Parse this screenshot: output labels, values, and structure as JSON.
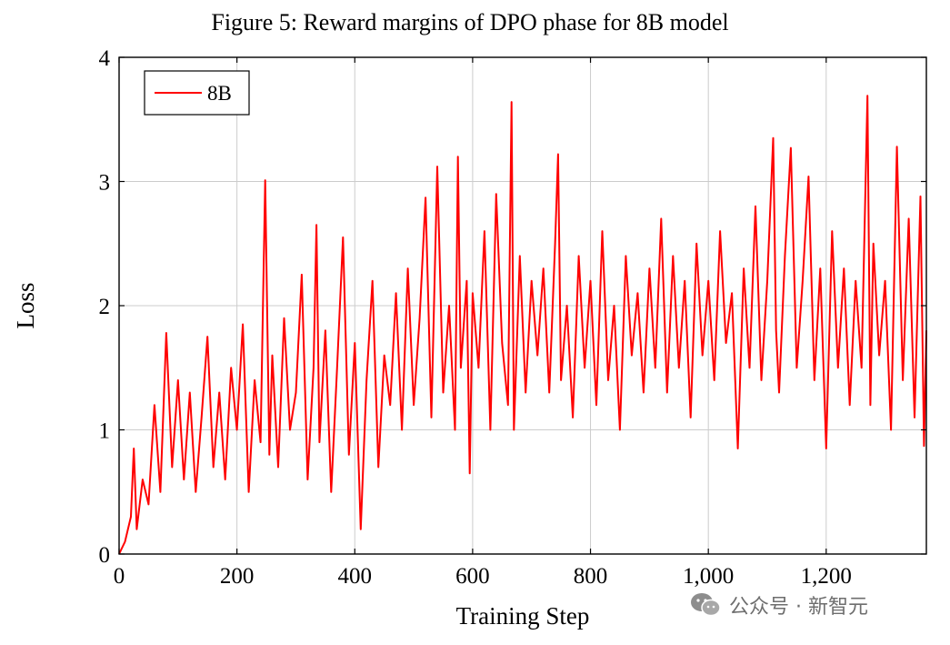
{
  "chart_data": {
    "type": "line",
    "title": "Figure 5: Reward margins of DPO phase for 8B model",
    "xlabel": "Training Step",
    "ylabel": "Loss",
    "xlim": [
      0,
      1370
    ],
    "ylim": [
      0,
      4
    ],
    "xticks": [
      0,
      200,
      400,
      600,
      800,
      1000,
      1200
    ],
    "xtick_labels": [
      "0",
      "200",
      "400",
      "600",
      "800",
      "1,000",
      "1,200"
    ],
    "yticks": [
      0,
      1,
      2,
      3,
      4
    ],
    "ytick_labels": [
      "0",
      "1",
      "2",
      "3",
      "4"
    ],
    "grid": true,
    "legend_position": "top-left",
    "series": [
      {
        "name": "8B",
        "color": "#ff0000",
        "x": [
          0,
          10,
          20,
          25,
          30,
          40,
          50,
          60,
          70,
          80,
          90,
          100,
          110,
          120,
          130,
          140,
          150,
          160,
          170,
          180,
          190,
          200,
          210,
          220,
          230,
          240,
          248,
          255,
          260,
          270,
          280,
          290,
          300,
          310,
          320,
          330,
          335,
          340,
          350,
          360,
          370,
          380,
          390,
          400,
          410,
          420,
          430,
          440,
          450,
          460,
          470,
          480,
          490,
          500,
          510,
          520,
          530,
          540,
          550,
          560,
          570,
          575,
          580,
          590,
          595,
          600,
          610,
          620,
          630,
          640,
          650,
          660,
          666,
          670,
          680,
          690,
          700,
          710,
          720,
          730,
          740,
          745,
          750,
          760,
          770,
          780,
          790,
          800,
          810,
          820,
          830,
          840,
          850,
          860,
          870,
          880,
          890,
          900,
          910,
          920,
          930,
          940,
          950,
          960,
          970,
          980,
          990,
          1000,
          1010,
          1020,
          1030,
          1040,
          1050,
          1060,
          1070,
          1080,
          1090,
          1100,
          1110,
          1115,
          1120,
          1130,
          1140,
          1150,
          1160,
          1170,
          1180,
          1190,
          1200,
          1210,
          1220,
          1230,
          1240,
          1250,
          1260,
          1270,
          1275,
          1280,
          1290,
          1300,
          1310,
          1320,
          1330,
          1340,
          1350,
          1360,
          1366,
          1370
        ],
        "y": [
          0.0,
          0.1,
          0.3,
          0.85,
          0.2,
          0.6,
          0.4,
          1.2,
          0.5,
          1.78,
          0.7,
          1.4,
          0.6,
          1.3,
          0.5,
          1.1,
          1.75,
          0.7,
          1.3,
          0.6,
          1.5,
          1.0,
          1.85,
          0.5,
          1.4,
          0.9,
          3.01,
          0.8,
          1.6,
          0.7,
          1.9,
          1.0,
          1.3,
          2.25,
          0.6,
          1.5,
          2.65,
          0.9,
          1.8,
          0.5,
          1.5,
          2.55,
          0.8,
          1.7,
          0.2,
          1.4,
          2.2,
          0.7,
          1.6,
          1.2,
          2.1,
          1.0,
          2.3,
          1.2,
          1.9,
          2.87,
          1.1,
          3.12,
          1.3,
          2.0,
          1.0,
          3.2,
          1.5,
          2.2,
          0.65,
          2.1,
          1.5,
          2.6,
          1.0,
          2.9,
          1.7,
          1.2,
          3.64,
          1.0,
          2.4,
          1.3,
          2.2,
          1.6,
          2.3,
          1.3,
          2.5,
          3.22,
          1.4,
          2.0,
          1.1,
          2.4,
          1.5,
          2.2,
          1.2,
          2.6,
          1.4,
          2.0,
          1.0,
          2.4,
          1.6,
          2.1,
          1.3,
          2.3,
          1.5,
          2.7,
          1.3,
          2.4,
          1.5,
          2.2,
          1.1,
          2.5,
          1.6,
          2.2,
          1.4,
          2.6,
          1.7,
          2.1,
          0.85,
          2.3,
          1.5,
          2.8,
          1.4,
          2.2,
          3.35,
          1.8,
          1.3,
          2.4,
          3.27,
          1.5,
          2.2,
          3.04,
          1.4,
          2.3,
          0.85,
          2.6,
          1.5,
          2.3,
          1.2,
          2.2,
          1.5,
          3.69,
          1.2,
          2.5,
          1.6,
          2.2,
          1.0,
          3.28,
          1.4,
          2.7,
          1.1,
          2.88,
          0.87,
          1.8
        ]
      }
    ]
  },
  "watermark": {
    "text": "公众号 · 新智元",
    "icon": "wechat-icon"
  }
}
